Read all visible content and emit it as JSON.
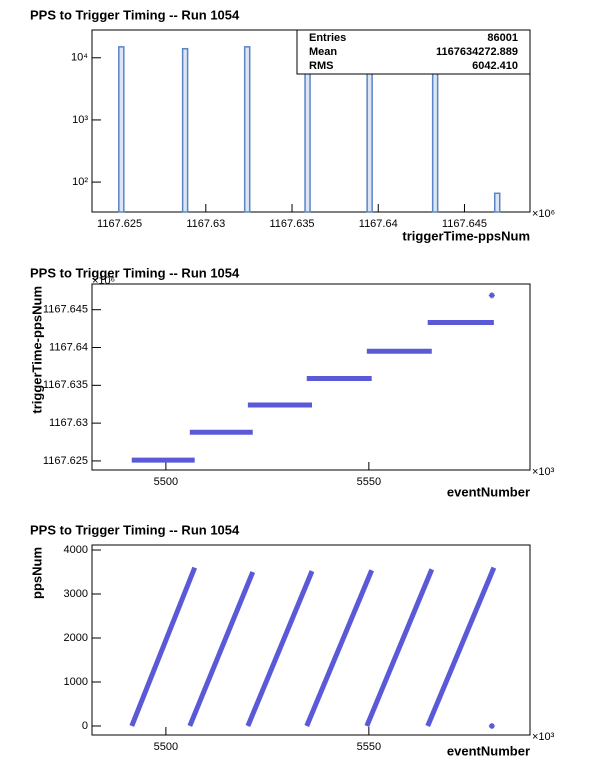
{
  "chart_data": [
    {
      "type": "histogram",
      "title": "PPS to Trigger Timing -- Run 1054",
      "x_label": "triggerTime-ppsNum",
      "x_multiplier": "×10⁶",
      "stats": [
        {
          "label": "Entries",
          "value": "86001"
        },
        {
          "label": "Mean",
          "value": "1167634272.889"
        },
        {
          "label": "RMS",
          "value": "6042.410"
        }
      ],
      "x": [
        1167.6251,
        1167.6288,
        1167.6324,
        1167.6359,
        1167.6395,
        1167.6433,
        1167.6469
      ],
      "values": [
        15000,
        14000,
        15000,
        15000,
        15000,
        15000,
        66
      ],
      "color": "#5b84c4",
      "log_y": true,
      "xlim": [
        1167.6234,
        1167.6488
      ],
      "xticks": [
        1167.625,
        1167.63,
        1167.635,
        1167.64,
        1167.645
      ],
      "ylim": [
        33,
        28000
      ],
      "yticks": [
        {
          "value": 100,
          "label": "10²"
        },
        {
          "value": 1000,
          "label": "10³"
        },
        {
          "value": 10000,
          "label": "10⁴"
        }
      ]
    },
    {
      "type": "line",
      "title": "PPS to Trigger Timing -- Run 1054",
      "x_label": "eventNumber",
      "y_label": "triggerTime-ppsNum",
      "x_multiplier": "×10³",
      "y_multiplier": "×10⁶",
      "color": "#5a5ad8",
      "series": [
        {
          "x": [
            5491.6,
            5507.1
          ],
          "y": [
            1167.6251,
            1167.6251
          ]
        },
        {
          "x": [
            5505.9,
            5521.4
          ],
          "y": [
            1167.6288,
            1167.6288
          ]
        },
        {
          "x": [
            5520.2,
            5536.0
          ],
          "y": [
            1167.6324,
            1167.6324
          ]
        },
        {
          "x": [
            5534.7,
            5550.7
          ],
          "y": [
            1167.6359,
            1167.6359
          ]
        },
        {
          "x": [
            5549.5,
            5565.5
          ],
          "y": [
            1167.6395,
            1167.6395
          ]
        },
        {
          "x": [
            5564.5,
            5580.8
          ],
          "y": [
            1167.6433,
            1167.6433
          ]
        },
        {
          "x": [
            5580.3
          ],
          "y": [
            1167.6469
          ]
        }
      ],
      "xlim": [
        5481.8,
        5589.7
      ],
      "xticks": [
        5500,
        5550
      ],
      "ylim": [
        1167.6238,
        1167.6484
      ],
      "yticks": [
        1167.625,
        1167.63,
        1167.635,
        1167.64,
        1167.645
      ]
    },
    {
      "type": "line",
      "title": "PPS to Trigger Timing -- Run 1054",
      "x_label": "eventNumber",
      "y_label": "ppsNum",
      "x_multiplier": "×10³",
      "color": "#5a5ad8",
      "series": [
        {
          "x": [
            5491.6,
            5507.1
          ],
          "y": [
            0,
            3600
          ]
        },
        {
          "x": [
            5505.9,
            5521.4
          ],
          "y": [
            0,
            3500
          ]
        },
        {
          "x": [
            5520.2,
            5536.0
          ],
          "y": [
            0,
            3520
          ]
        },
        {
          "x": [
            5534.7,
            5550.7
          ],
          "y": [
            0,
            3540
          ]
        },
        {
          "x": [
            5549.5,
            5565.5
          ],
          "y": [
            0,
            3560
          ]
        },
        {
          "x": [
            5564.5,
            5580.8
          ],
          "y": [
            0,
            3600
          ]
        },
        {
          "x": [
            5580.3
          ],
          "y": [
            0
          ]
        }
      ],
      "xlim": [
        5481.8,
        5589.7
      ],
      "xticks": [
        5500,
        5550
      ],
      "ylim": [
        -205,
        4114
      ],
      "yticks": [
        0,
        1000,
        2000,
        3000,
        4000
      ]
    }
  ]
}
